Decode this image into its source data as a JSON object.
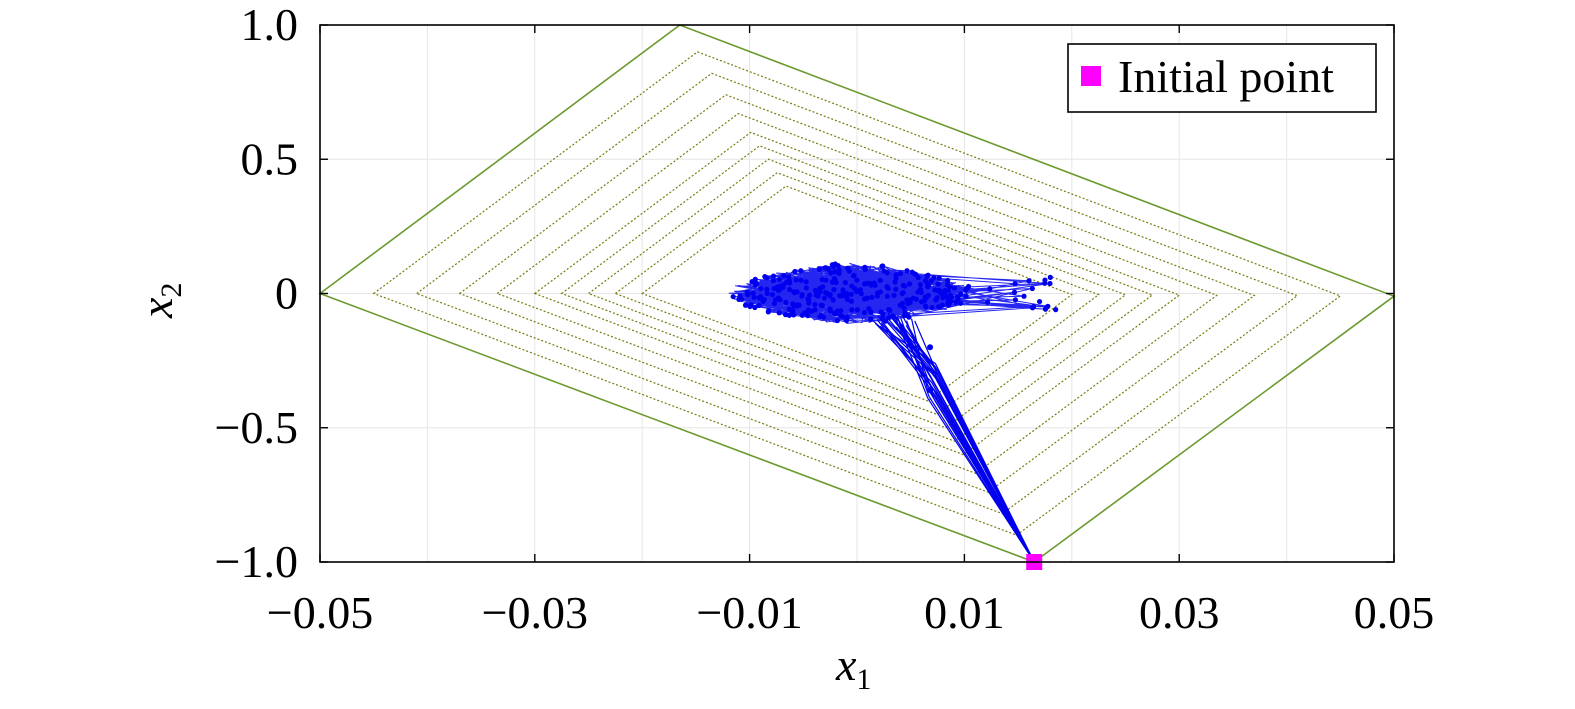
{
  "chart_data": {
    "type": "scatter",
    "title": "",
    "xlabel": {
      "main": "x",
      "sub": "1"
    },
    "ylabel": {
      "main": "x",
      "sub": "2"
    },
    "xlim": [
      -0.05,
      0.05
    ],
    "ylim": [
      -1.0,
      1.0
    ],
    "x_ticks": [
      -0.05,
      -0.03,
      -0.01,
      0.01,
      0.03,
      0.05
    ],
    "x_tick_labels": [
      "−0.05",
      "−0.03",
      "−0.01",
      "0.01",
      "0.03",
      "0.05"
    ],
    "x_grid": [
      -0.04,
      -0.03,
      -0.02,
      -0.01,
      0.0,
      0.01,
      0.02,
      0.03,
      0.04
    ],
    "y_ticks": [
      1.0,
      0.5,
      0,
      -0.5,
      -1.0
    ],
    "y_tick_labels": [
      "1.0",
      "0.5",
      "0",
      "−0.5",
      "−1.0"
    ],
    "grid": true,
    "legend_position": "top-right",
    "colors": {
      "trajectory": "#0000ee",
      "outer_set": "#6b9a2e",
      "inner_sets": "#7a7a10",
      "initial_point": "#ff00ff",
      "grid": "#e6e6e6"
    },
    "outer_set": [
      [
        -0.05,
        0.0
      ],
      [
        -0.0165,
        1.0
      ],
      [
        0.05,
        -0.01
      ],
      [
        0.0165,
        -1.0
      ]
    ],
    "inner_set_scales": [
      0.9,
      0.82,
      0.74,
      0.67,
      0.6,
      0.55,
      0.5,
      0.45,
      0.4
    ],
    "initial_point": {
      "x": 0.0165,
      "y": -1.0
    },
    "series": [
      {
        "name": "Initial point",
        "marker": "square",
        "values": [
          [
            0.0165,
            -1.0
          ]
        ]
      }
    ],
    "trajectory": {
      "description_points": {
        "cluster_center": [
          0.0,
          0.0
        ],
        "cluster_x_range": [
          -0.012,
          0.018
        ],
        "cluster_y_range": [
          -0.12,
          0.14
        ],
        "transient_path": [
          [
            0.0165,
            -1.0
          ],
          [
            0.007,
            -0.22
          ],
          [
            0.003,
            -0.1
          ]
        ]
      }
    }
  }
}
